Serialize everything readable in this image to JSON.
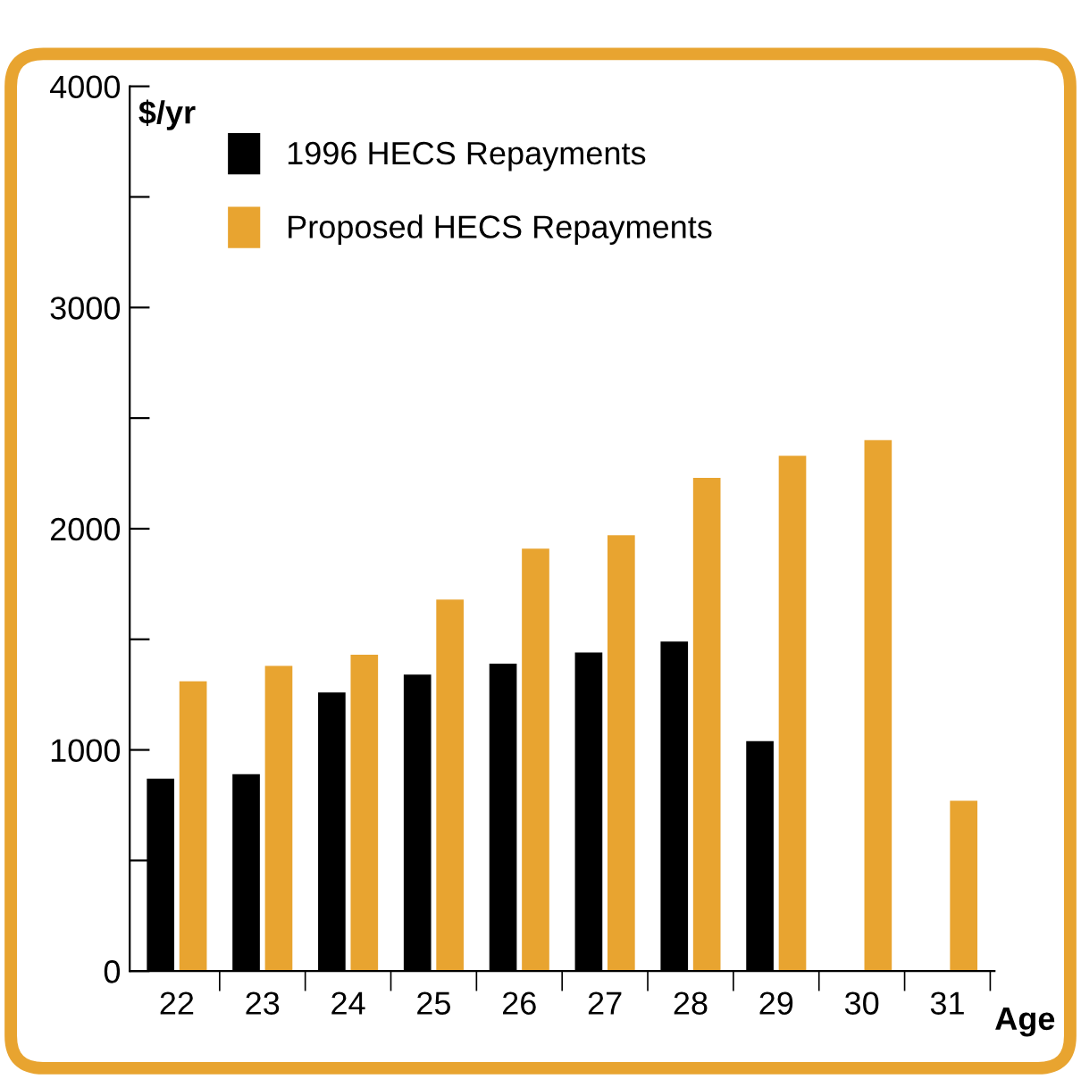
{
  "chart_data": {
    "type": "bar",
    "xlabel": "Age",
    "ylabel": "$/yr",
    "categories": [
      "22",
      "23",
      "24",
      "25",
      "26",
      "27",
      "28",
      "29",
      "30",
      "31"
    ],
    "series": [
      {
        "name": "1996 HECS Repayments",
        "color": "#000000",
        "values": [
          870,
          890,
          1260,
          1340,
          1390,
          1440,
          1490,
          1040,
          null,
          null
        ]
      },
      {
        "name": "Proposed HECS Repayments",
        "color": "#e8a430",
        "values": [
          1310,
          1380,
          1430,
          1680,
          1910,
          1970,
          2230,
          2330,
          2400,
          770
        ]
      }
    ],
    "ylim": [
      0,
      4000
    ],
    "yticks": [
      0,
      {
        "value": 500,
        "label": null
      },
      1000,
      {
        "value": 1500,
        "label": null
      },
      2000,
      {
        "value": 2500,
        "label": null
      },
      3000,
      {
        "value": 3500,
        "label": null
      },
      4000
    ],
    "legend": "top left",
    "grid": false
  }
}
